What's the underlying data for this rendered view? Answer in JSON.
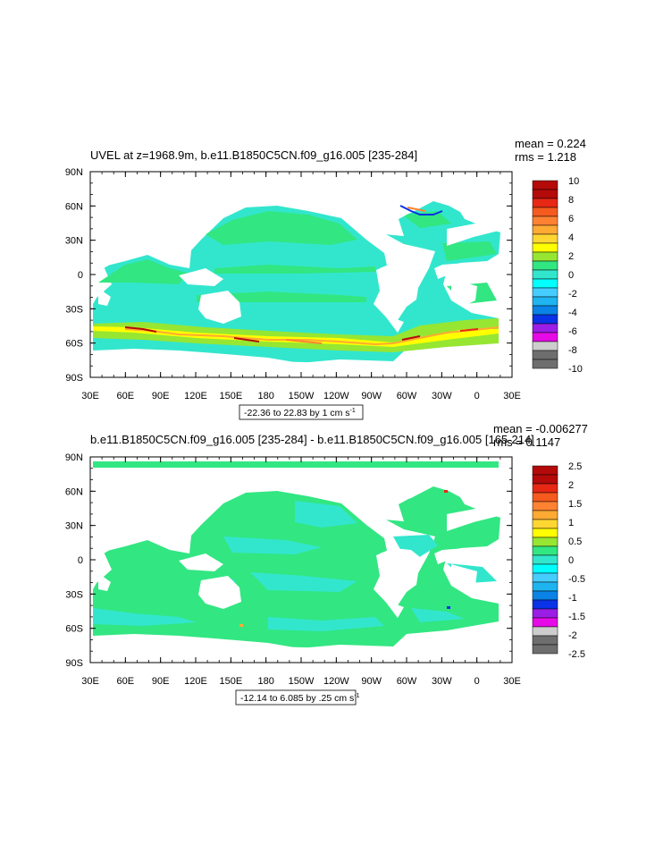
{
  "palette": [
    "#6e6e6e",
    "#cdcdcd",
    "#e60ae6",
    "#9a1ee6",
    "#0a32e6",
    "#0a82e6",
    "#1eb4f0",
    "#46cdff",
    "#00ffff",
    "#32e6cd",
    "#32e682",
    "#96e632",
    "#ffff00",
    "#ffd732",
    "#ffaa32",
    "#ff8232",
    "#f55a1e",
    "#e62814",
    "#b40a0a"
  ],
  "chart_data": [
    {
      "type": "heatmap",
      "title": "UVEL at z=1968.9m, b.e11.B1850C5CN.f09_g16.005 [235-284]",
      "stats": [
        "mean = 0.224",
        "rms = 1.218"
      ],
      "range_label": "-22.36 to 22.83 by 1 cm s",
      "range_sup": "-1",
      "x_ticks": [
        "30E",
        "60E",
        "90E",
        "120E",
        "150E",
        "180",
        "150W",
        "120W",
        "90W",
        "60W",
        "30W",
        "0",
        "30E"
      ],
      "y_ticks": [
        "90N",
        "60N",
        "30N",
        "0",
        "30S",
        "60S",
        "90S"
      ],
      "colorbar_labels": [
        "10",
        "8",
        "6",
        "4",
        "2",
        "0",
        "-2",
        "-4",
        "-6",
        "-8",
        "-10"
      ],
      "colorbar_range": [
        -10,
        10
      ]
    },
    {
      "type": "heatmap",
      "title": "b.e11.B1850C5CN.f09_g16.005 [235-284] - b.e11.B1850C5CN.f09_g16.005 [165-214]",
      "stats": [
        "mean = -0.006277",
        "rms = 0.1147"
      ],
      "range_label": "-12.14 to 6.085 by .25 cm s",
      "range_sup": "-1",
      "x_ticks": [
        "30E",
        "60E",
        "90E",
        "120E",
        "150E",
        "180",
        "150W",
        "120W",
        "90W",
        "60W",
        "30W",
        "0",
        "30E"
      ],
      "y_ticks": [
        "90N",
        "60N",
        "30N",
        "0",
        "30S",
        "60S",
        "90S"
      ],
      "colorbar_labels": [
        "2.5",
        "2",
        "1.5",
        "1",
        "0.5",
        "0",
        "-0.5",
        "-1",
        "-1.5",
        "-2",
        "-2.5"
      ],
      "colorbar_range": [
        -2.5,
        2.5
      ]
    }
  ]
}
